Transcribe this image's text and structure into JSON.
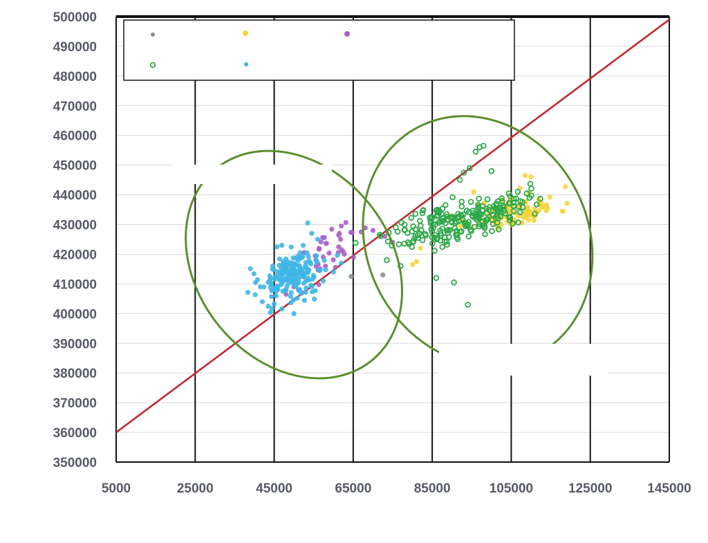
{
  "chart_data": {
    "type": "scatter",
    "title": "",
    "xlabel": "",
    "ylabel": "",
    "xlim": [
      5000,
      145000
    ],
    "ylim": [
      350000,
      500000
    ],
    "x_ticks": [
      5000,
      25000,
      45000,
      65000,
      85000,
      105000,
      125000,
      145000
    ],
    "y_ticks": [
      350000,
      360000,
      370000,
      380000,
      390000,
      400000,
      410000,
      420000,
      430000,
      440000,
      450000,
      460000,
      470000,
      480000,
      490000,
      500000
    ],
    "x_tick_labels": [
      "5000",
      "25000",
      "45000",
      "65000",
      "85000",
      "105000",
      "125000",
      "145000"
    ],
    "y_tick_labels": [
      "350000",
      "360000",
      "370000",
      "380000",
      "390000",
      "400000",
      "410000",
      "420000",
      "430000",
      "440000",
      "450000",
      "460000",
      "470000",
      "480000",
      "490000",
      "500000"
    ],
    "grid": {
      "vertical_major": true,
      "horizontal_minor": true
    },
    "legend": {
      "placement": "top",
      "entries": [
        "",
        "",
        "",
        "",
        ""
      ]
    },
    "reference_line": {
      "color": "#c0282e",
      "x": [
        5000,
        145000
      ],
      "y": [
        360000,
        499000
      ]
    },
    "ellipses": [
      {
        "color": "#5a8f2e",
        "cx": 50000,
        "cy": 416500,
        "rx": 24500,
        "ry": 10400,
        "angle_deg": -39
      },
      {
        "color": "#5a8f2e",
        "cx": 96500,
        "cy": 424500,
        "rx": 28000,
        "ry": 10800,
        "angle_deg": -28
      }
    ],
    "series": [
      {
        "name": "",
        "color": "#8c8c8c",
        "marker": "filled",
        "points": [
          [
            64500,
            412500
          ],
          [
            72500,
            413000
          ]
        ]
      },
      {
        "name": "",
        "color": "#f5d43a",
        "marker": "filled",
        "cluster": {
          "count": 95,
          "seed": 11,
          "center": [
            106000,
            434500
          ],
          "spread": [
            5500,
            3000
          ],
          "corr": 0.4
        },
        "points": [
          [
            81000,
            417500
          ],
          [
            80000,
            416500
          ],
          [
            82000,
            422000
          ],
          [
            90000,
            433000
          ],
          [
            95500,
            441000
          ],
          [
            104000,
            431000
          ],
          [
            108500,
            446500
          ],
          [
            110000,
            446000
          ]
        ]
      },
      {
        "name": "",
        "color": "#a860c8",
        "marker": "filled",
        "cluster": {
          "count": 35,
          "seed": 23,
          "center": [
            60000,
            421000
          ],
          "spread": [
            3500,
            4200
          ],
          "corr": 0.6
        },
        "points": [
          [
            61500,
            427000
          ],
          [
            62000,
            429500
          ],
          [
            61800,
            425000
          ],
          [
            67000,
            427500
          ],
          [
            70000,
            428000
          ],
          [
            73000,
            426000
          ],
          [
            75000,
            424000
          ],
          [
            52000,
            407000
          ],
          [
            48000,
            406500
          ],
          [
            50000,
            409000
          ]
        ]
      },
      {
        "name": "",
        "color": "#2ea84a",
        "marker": "ring",
        "cluster": {
          "count": 230,
          "seed": 37,
          "center": [
            92000,
            431500
          ],
          "spread": [
            8500,
            4500
          ],
          "corr": 0.65
        },
        "points": [
          [
            96000,
            454500
          ],
          [
            97000,
            456000
          ],
          [
            98000,
            456500
          ],
          [
            94500,
            449000
          ],
          [
            93000,
            447500
          ],
          [
            92000,
            445000
          ],
          [
            100000,
            448000
          ],
          [
            86000,
            412000
          ],
          [
            90500,
            410500
          ],
          [
            94000,
            403000
          ],
          [
            73500,
            418000
          ],
          [
            77000,
            416000
          ]
        ]
      },
      {
        "name": "",
        "color": "#3fb6e6",
        "marker": "filled",
        "cluster": {
          "count": 190,
          "seed": 53,
          "center": [
            49500,
            412500
          ],
          "spread": [
            4200,
            4600
          ],
          "corr": 0.25
        },
        "points": [
          [
            53500,
            430500
          ],
          [
            54500,
            427000
          ],
          [
            56000,
            425000
          ],
          [
            41500,
            409000
          ],
          [
            42000,
            404000
          ],
          [
            43500,
            402500
          ],
          [
            45500,
            406000
          ],
          [
            60000,
            414000
          ],
          [
            62000,
            417000
          ]
        ]
      }
    ]
  }
}
